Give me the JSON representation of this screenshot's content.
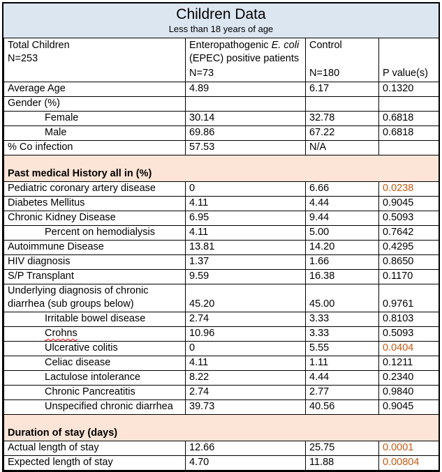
{
  "title": "Children Data",
  "subtitle": "Less than 18 years of age",
  "header": {
    "total": {
      "line1": "Total Children",
      "line2": "N=253"
    },
    "epec": {
      "word1": "Enteropathogenic",
      "italic": "E. coli",
      "line2": "(EPEC) positive patients",
      "n": "N=73"
    },
    "control": {
      "line1": "Control",
      "n": "N=180"
    },
    "pvalue": {
      "label": "P value(s)"
    }
  },
  "colors": {
    "header_bg": "#dce6f1",
    "section_bg": "#fce4d6",
    "significant": "#c55a11",
    "spellcheck": "#ff0000"
  },
  "rows": [
    {
      "type": "data",
      "label": "Average Age",
      "indent": 0,
      "epec": "4.89",
      "control": "6.17",
      "p": "0.1320"
    },
    {
      "type": "data",
      "label": "Gender (%)",
      "indent": 0,
      "epec": "",
      "control": "",
      "p": ""
    },
    {
      "type": "data",
      "label": "Female",
      "indent": 1,
      "epec": "30.14",
      "control": "32.78",
      "p": "0.6818"
    },
    {
      "type": "data",
      "label": "Male",
      "indent": 1,
      "epec": "69.86",
      "control": "67.22",
      "p": "0.6818"
    },
    {
      "type": "data",
      "label": "% Co infection",
      "indent": 0,
      "epec": "57.53",
      "control": "N/A",
      "p": ""
    },
    {
      "type": "section",
      "label": "Past medical History all in (%)"
    },
    {
      "type": "data",
      "label": "Pediatric coronary artery disease",
      "indent": 0,
      "epec": "0",
      "control": "6.66",
      "p": "0.0238",
      "p_highlight": true
    },
    {
      "type": "data",
      "label": "Diabetes Mellitus",
      "indent": 0,
      "epec": "4.11",
      "control": "4.44",
      "p": "0.9045"
    },
    {
      "type": "data",
      "label": "Chronic Kidney Disease",
      "indent": 0,
      "epec": "6.95",
      "control": "9.44",
      "p": "0.5093"
    },
    {
      "type": "data",
      "label": "Percent on hemodialysis",
      "indent": 1,
      "epec": "4.11",
      "control": "5.00",
      "p": "0.7642"
    },
    {
      "type": "data",
      "label": "Autoimmune Disease",
      "indent": 0,
      "epec": "13.81",
      "control": "14.20",
      "p": "0.4295"
    },
    {
      "type": "data",
      "label": "HIV diagnosis",
      "indent": 0,
      "epec": "1.37",
      "control": "1.66",
      "p": "0.8650"
    },
    {
      "type": "data",
      "label": "S/P Transplant",
      "indent": 0,
      "epec": "9.59",
      "control": "16.38",
      "p": "0.1170"
    },
    {
      "type": "data",
      "label": "Underlying diagnosis of chronic diarrhea (sub groups below)",
      "indent": 0,
      "epec": "45.20",
      "control": "45.00",
      "p": "0.9761",
      "tall": true
    },
    {
      "type": "data",
      "label": "Irritable bowel disease",
      "indent": 1,
      "epec": "2.74",
      "control": "3.33",
      "p": "0.8103"
    },
    {
      "type": "data",
      "label": "Crohns",
      "indent": 1,
      "epec": "10.96",
      "control": "3.33",
      "p": "0.5093",
      "spellcheck": true
    },
    {
      "type": "data",
      "label": "Ulcerative colitis",
      "indent": 1,
      "epec": "0",
      "control": "5.55",
      "p": "0.0404",
      "p_highlight": true
    },
    {
      "type": "data",
      "label": "Celiac disease",
      "indent": 1,
      "epec": "4.11",
      "control": "1.11",
      "p": "0.1211"
    },
    {
      "type": "data",
      "label": "Lactulose intolerance",
      "indent": 1,
      "epec": "8.22",
      "control": "4.44",
      "p": "0.2340"
    },
    {
      "type": "data",
      "label": "Chronic Pancreatitis",
      "indent": 1,
      "epec": "2.74",
      "control": "2.77",
      "p": "0.9840"
    },
    {
      "type": "data",
      "label": "Unspecified chronic diarrhea",
      "indent": 1,
      "epec": "39.73",
      "control": "40.56",
      "p": "0.9045"
    },
    {
      "type": "section",
      "label": "Duration of stay (days)"
    },
    {
      "type": "data",
      "label": "Actual length of stay",
      "indent": 0,
      "epec": "12.66",
      "control": "25.75",
      "p": "0.0001",
      "p_highlight": true
    },
    {
      "type": "data",
      "label": "Expected length of stay",
      "indent": 0,
      "epec": "4.70",
      "control": "11.88",
      "p": "0.00804",
      "p_highlight": true
    }
  ]
}
